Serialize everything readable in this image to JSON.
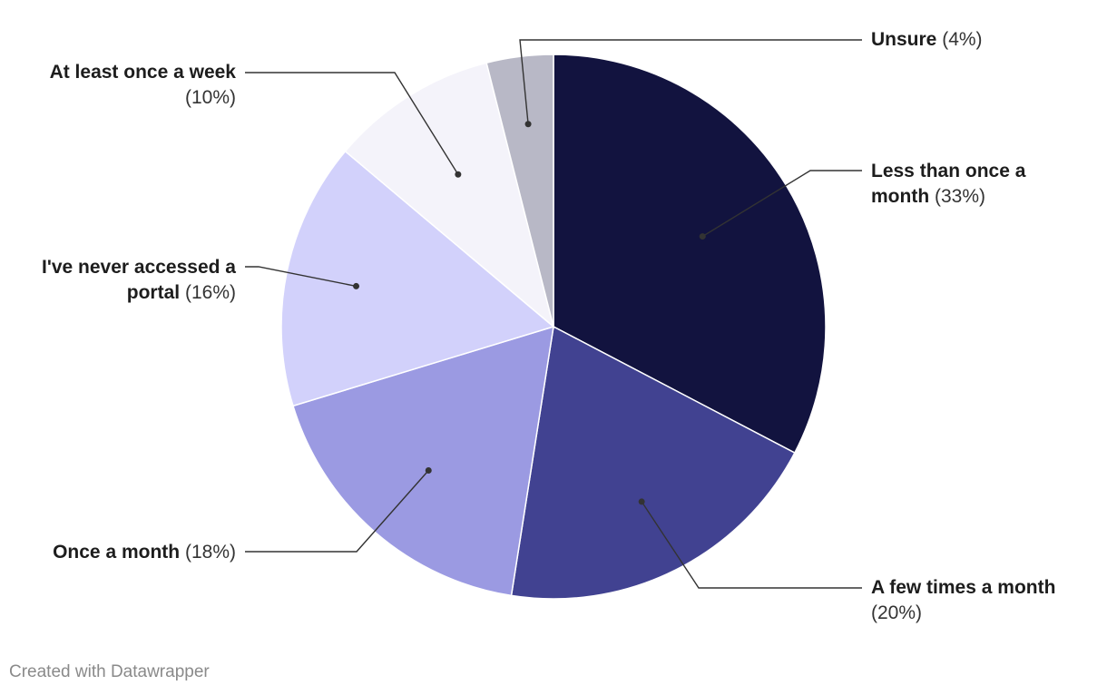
{
  "chart_data": {
    "type": "pie",
    "slices": [
      {
        "label": "Less than once a month",
        "value": 33,
        "pct_text": "(33%)",
        "color": "#12133f"
      },
      {
        "label": "A few times a month",
        "value": 20,
        "pct_text": "(20%)",
        "color": "#414291"
      },
      {
        "label": "Once a month",
        "value": 18,
        "pct_text": "(18%)",
        "color": "#9b9ae2"
      },
      {
        "label": "I've never accessed a portal",
        "value": 16,
        "pct_text": "(16%)",
        "color": "#d2d1fb"
      },
      {
        "label": "At least once a week",
        "value": 10,
        "pct_text": "(10%)",
        "color": "#f4f3fa"
      },
      {
        "label": "Unsure",
        "value": 4,
        "pct_text": "(4%)",
        "color": "#b8b8c6"
      }
    ]
  },
  "credit": "Created with Datawrapper"
}
